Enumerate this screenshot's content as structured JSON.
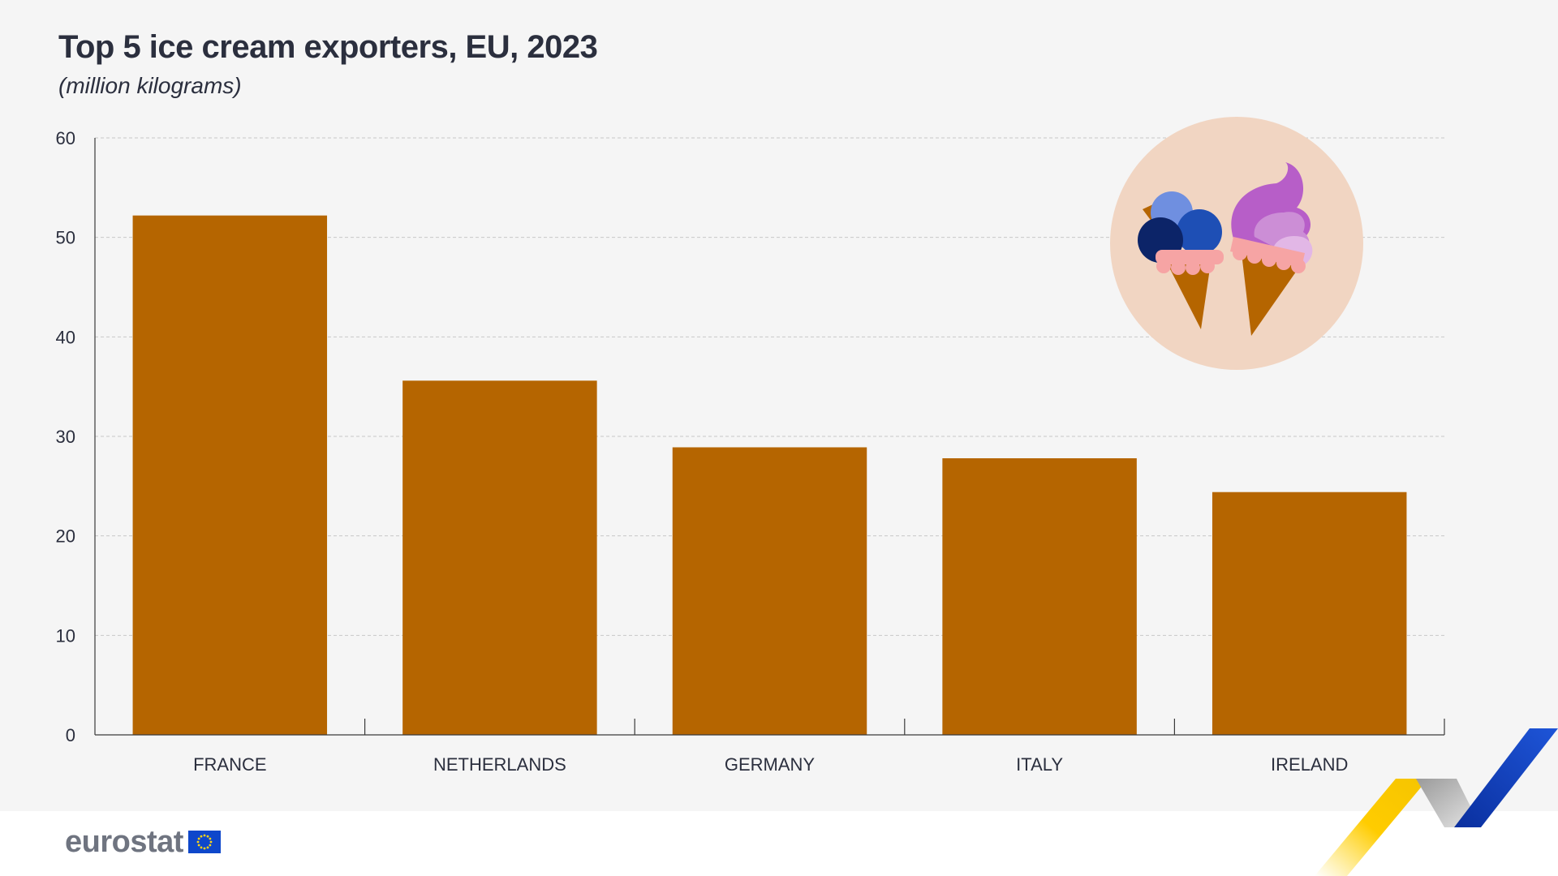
{
  "title": "Top 5 ice cream exporters, EU, 2023",
  "subtitle": "(million kilograms)",
  "brand": {
    "logo_text": "eurostat",
    "flag_color": "#0e47cb",
    "star_color": "#ffd617"
  },
  "colors": {
    "bar": "#b56500",
    "grid": "#c8c8c8",
    "axis": "#3a3a3a",
    "background": "#f5f5f5",
    "icon_circle": "#f1d5c2"
  },
  "icon": {
    "name": "ice-cream-cones-icon"
  },
  "chart_data": {
    "type": "bar",
    "title": "Top 5 ice cream exporters, EU, 2023",
    "subtitle": "(million kilograms)",
    "categories": [
      "FRANCE",
      "NETHERLANDS",
      "GERMANY",
      "ITALY",
      "IRELAND"
    ],
    "values": [
      52.2,
      35.6,
      28.9,
      27.8,
      24.4
    ],
    "xlabel": "",
    "ylabel": "",
    "ylim": [
      0,
      60
    ],
    "yticks": [
      0,
      10,
      20,
      30,
      40,
      50,
      60
    ],
    "grid": true,
    "grid_style": "dashed-horizontal",
    "legend": "none"
  }
}
